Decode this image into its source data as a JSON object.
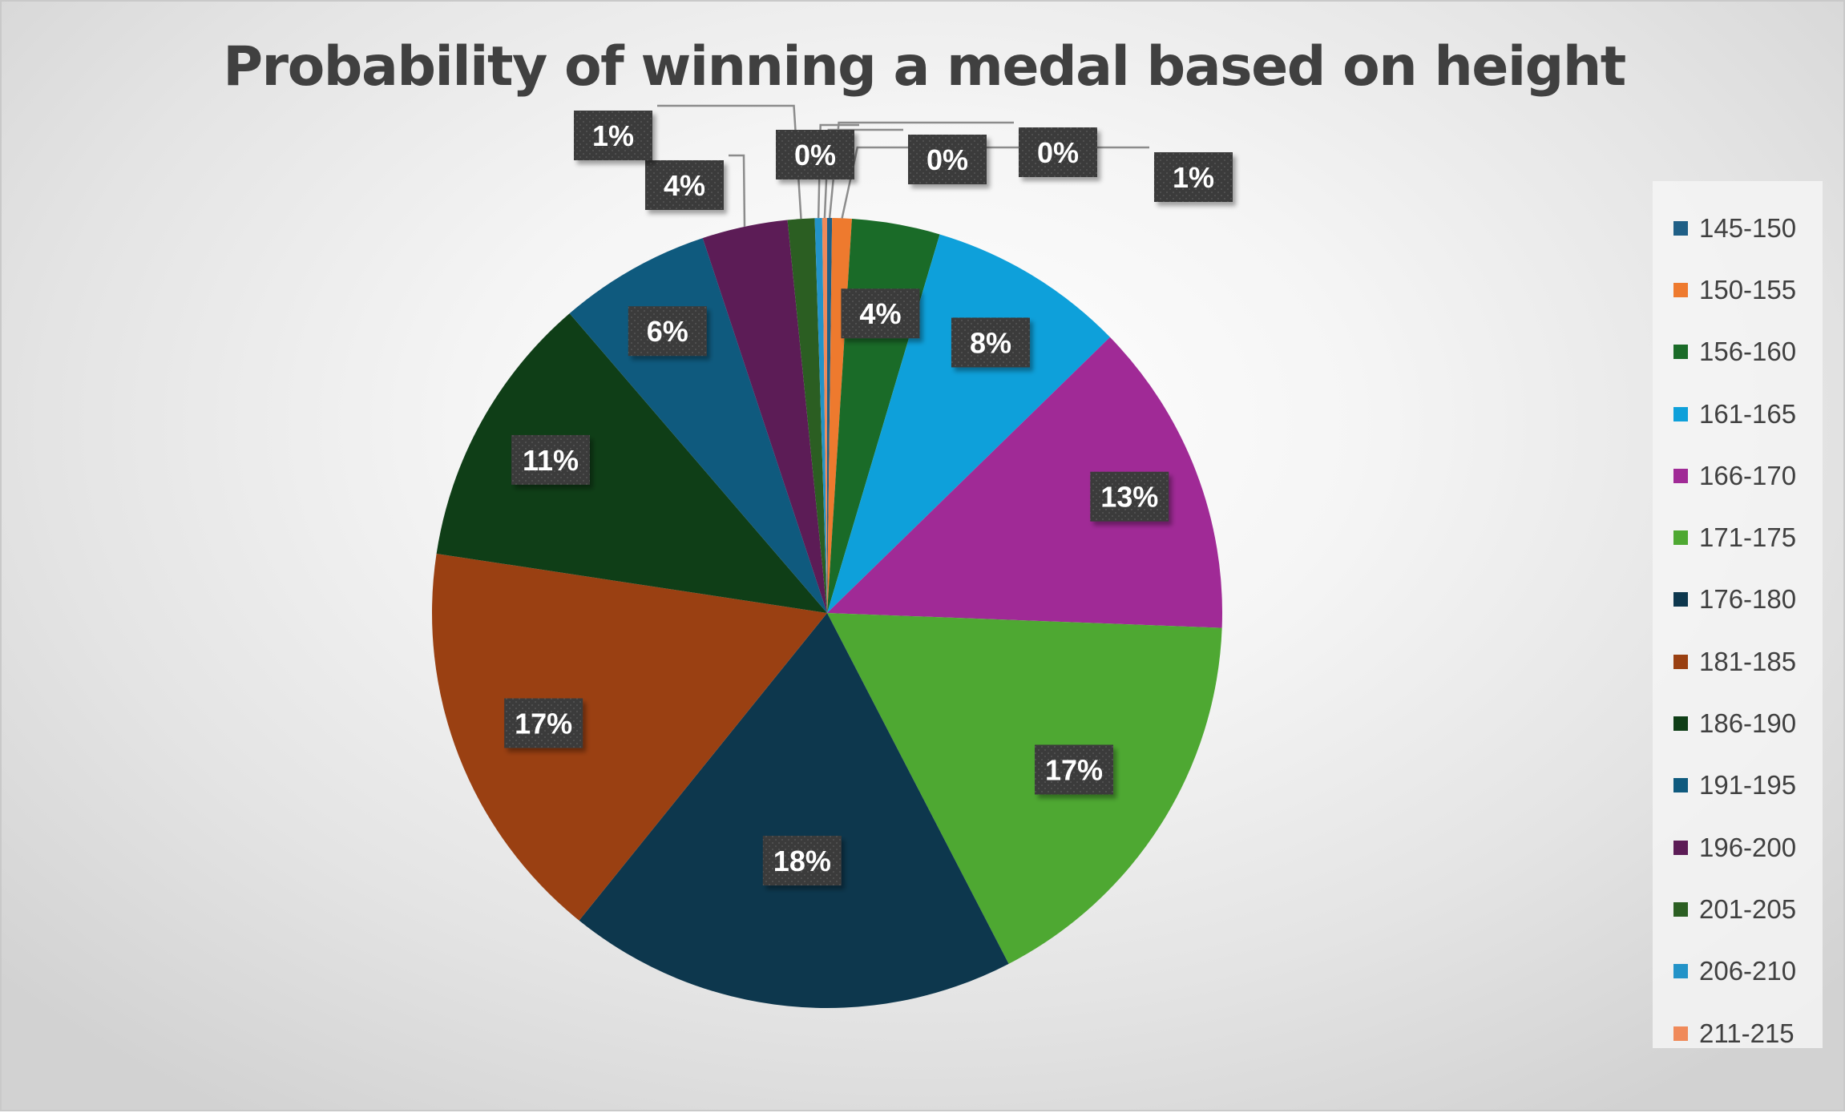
{
  "chart_data": {
    "type": "pie",
    "title": "Probability of winning a medal based on height",
    "categories": [
      "145-150",
      "150-155",
      "156-160",
      "161-165",
      "166-170",
      "171-175",
      "176-180",
      "181-185",
      "186-190",
      "191-195",
      "196-200",
      "201-205",
      "206-210",
      "211-215"
    ],
    "values": [
      0.2,
      0.8,
      3.6,
      8.1,
      12.9,
      16.8,
      18.4,
      16.6,
      11.3,
      6.2,
      3.5,
      1.1,
      0.3,
      0.2
    ],
    "data_labels": [
      "0%",
      "1%",
      "4%",
      "8%",
      "13%",
      "17%",
      "18%",
      "17%",
      "11%",
      "6%",
      "4%",
      "1%",
      "0%",
      "0%"
    ],
    "colors": [
      "#1f5f86",
      "#ee7a2e",
      "#1a6b28",
      "#0ea0da",
      "#a02a96",
      "#4ea832",
      "#0d374d",
      "#9a4012",
      "#0f3e17",
      "#0f5a7e",
      "#5c1c56",
      "#2b5e22",
      "#2393c8",
      "#f08a5a"
    ],
    "legend_position": "right",
    "start_angle_deg": 0
  }
}
